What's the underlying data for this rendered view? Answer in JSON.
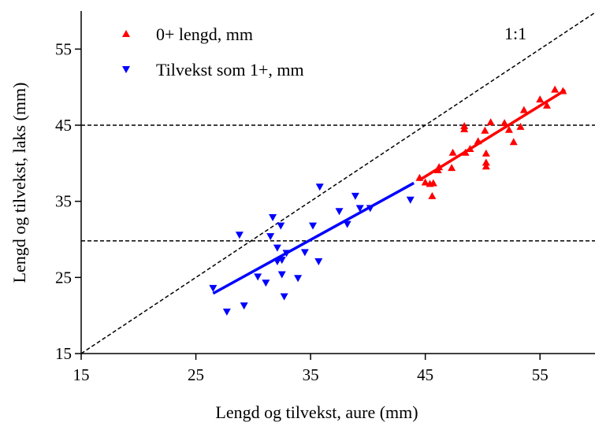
{
  "chart_data": {
    "type": "scatter",
    "x_label": "Lengd og tilvekst, aure (mm)",
    "y_label": "Lengd og tilvekst, laks (mm)",
    "xlim": [
      15,
      60
    ],
    "ylim": [
      15,
      60
    ],
    "xticks": [
      15,
      25,
      35,
      45,
      55
    ],
    "yticks": [
      15,
      25,
      35,
      45,
      55
    ],
    "hlines": [
      45,
      29.8
    ],
    "identity_line": true,
    "identity_label": "1:1",
    "legend": "upper left",
    "series": [
      {
        "name": "0+ lengd, mm",
        "color": "#ff0000",
        "marker": "triangle-up",
        "x": [
          44.5,
          45.0,
          45.4,
          45.6,
          45.7,
          46.1,
          46.2,
          47.3,
          47.4,
          48.4,
          48.4,
          48.5,
          48.9,
          49.6,
          50.2,
          50.3,
          50.3,
          50.3,
          50.7,
          51.9,
          52.3,
          52.7,
          53.3,
          53.6,
          55.0,
          55.6,
          56.3,
          57.0
        ],
        "values": [
          38.1,
          37.5,
          37.3,
          35.7,
          37.4,
          39.1,
          39.5,
          39.4,
          41.4,
          44.9,
          44.5,
          41.4,
          41.9,
          42.9,
          44.3,
          41.3,
          40.1,
          39.6,
          45.4,
          45.3,
          44.4,
          42.8,
          44.8,
          47.0,
          48.4,
          47.6,
          49.7,
          49.5
        ],
        "fit": {
          "x": [
            44.5,
            57.2
          ],
          "values": [
            37.8,
            49.6
          ]
        }
      },
      {
        "name": "Tilvekst som 1+, mm",
        "color": "#0000ff",
        "marker": "triangle-down",
        "x": [
          26.5,
          27.7,
          28.8,
          29.2,
          30.4,
          31.1,
          31.5,
          31.7,
          32.1,
          32.1,
          32.4,
          32.5,
          32.5,
          32.7,
          32.9,
          33.9,
          34.5,
          35.2,
          35.7,
          35.8,
          37.5,
          38.2,
          38.9,
          39.3,
          40.2,
          43.7
        ],
        "values": [
          23.6,
          20.5,
          30.6,
          21.3,
          25.1,
          24.3,
          30.4,
          32.9,
          28.9,
          27.1,
          31.8,
          25.4,
          27.3,
          22.5,
          28.2,
          24.9,
          28.3,
          31.8,
          27.1,
          36.9,
          33.7,
          32.0,
          35.7,
          34.1,
          34.1,
          35.2
        ],
        "fit": {
          "x": [
            26.5,
            44.0
          ],
          "values": [
            22.9,
            37.4
          ]
        }
      }
    ]
  }
}
